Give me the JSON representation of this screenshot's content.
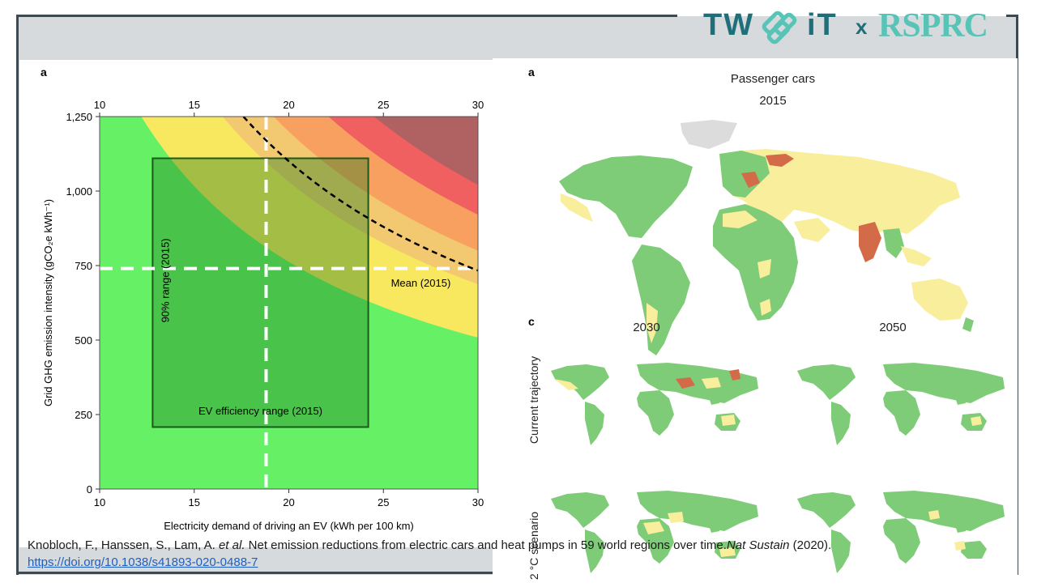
{
  "logo": {
    "left": "TW",
    "icon": "twist-icon",
    "mid": "iT",
    "x": "x",
    "right": "RSPRC"
  },
  "chart_data": [
    {
      "type": "area",
      "panel_label": "a",
      "xlabel": "Electricity demand of driving an EV (kWh per 100 km)",
      "ylabel": "Grid GHG emission intensity (gCO₂e kWh⁻¹)",
      "xlim": [
        10,
        30
      ],
      "ylim": [
        0,
        1250
      ],
      "x_ticks": [
        "10",
        "15",
        "20",
        "25",
        "30"
      ],
      "y_ticks": [
        "0",
        "250",
        "500",
        "750",
        "1,000",
        "1,250"
      ],
      "bands": [
        {
          "color": "#66f066",
          "boundary_intercept": 12.2
        },
        {
          "color": "#f8e860",
          "boundary_intercept": 16.5
        },
        {
          "color": "#f2c870",
          "boundary_intercept": 19.2
        },
        {
          "color": "#f8a060",
          "boundary_intercept": 22.1
        },
        {
          "color": "#f06060",
          "boundary_intercept": 24.5
        },
        {
          "color": "#b06262",
          "boundary_intercept": null
        }
      ],
      "mean_curve": {
        "style": "dashed",
        "color": "#000000",
        "x_at_ymax": 17.6
      },
      "mean_x": 18.8,
      "mean_y": 740,
      "annotations": {
        "mean": "Mean (2015)",
        "range_90": "90% range (2015)",
        "ev_range": "EV efficiency range (2015)"
      },
      "ev_box": {
        "x": [
          12.8,
          24.2
        ],
        "y": [
          208,
          1110
        ],
        "color": "#1a7a1a"
      }
    },
    {
      "type": "map",
      "panel_label": "a",
      "title": "Passenger cars",
      "subtitle": "2015",
      "colors": {
        "green": "#7ecb78",
        "yellow": "#f8ee9c",
        "red": "#d46b48",
        "grey": "#dcdcdc"
      }
    },
    {
      "type": "map",
      "panel_label": "c",
      "columns": [
        "2030",
        "2050"
      ],
      "rows": [
        "Current trajectory",
        "2 °C scenario"
      ]
    }
  ],
  "citation": {
    "authors": "Knobloch, F., Hanssen, S., Lam, A. ",
    "etal": "et al.",
    "title": " Net emission reductions from electric cars and heat pumps in 59 world regions over time.",
    "journal": "Nat Sustain",
    "year": " (2020).",
    "doi": "https://doi.org/10.1038/s41893-020-0488-7"
  }
}
